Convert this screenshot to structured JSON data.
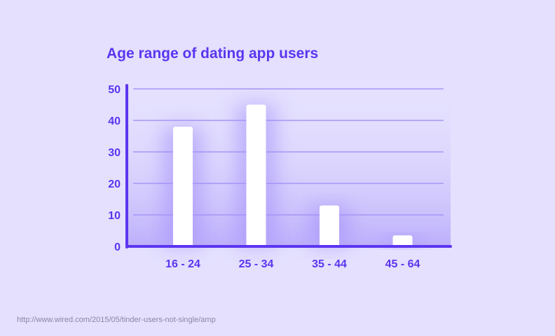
{
  "chart_data": {
    "type": "bar",
    "title": "Age range of dating app users",
    "categories": [
      "16 - 24",
      "25 - 34",
      "35 - 44",
      "45 - 64"
    ],
    "values": [
      38,
      45,
      13,
      3.5
    ],
    "ylim": [
      0,
      50
    ],
    "yticks": [
      0,
      10,
      20,
      30,
      40,
      50
    ],
    "grid": true,
    "xlabel": "",
    "ylabel": ""
  },
  "source": "http://www.wired.com/2015/05/tinder-users-not-single/amp",
  "colors": {
    "background": "#e4e0fe",
    "accent": "#5b35f0",
    "bar": "#ffffff",
    "gridline": "#a796f5",
    "source_text": "#8a86a8"
  }
}
